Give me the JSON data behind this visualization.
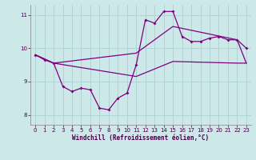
{
  "xlabel": "Windchill (Refroidissement éolien,°C)",
  "bg_color": "#cce8e8",
  "line_color": "#800080",
  "grid_color": "#b0d4d4",
  "xlim": [
    -0.5,
    23.5
  ],
  "ylim": [
    7.7,
    11.3
  ],
  "yticks": [
    8,
    9,
    10,
    11
  ],
  "xticks": [
    0,
    1,
    2,
    3,
    4,
    5,
    6,
    7,
    8,
    9,
    10,
    11,
    12,
    13,
    14,
    15,
    16,
    17,
    18,
    19,
    20,
    21,
    22,
    23
  ],
  "curve1_x": [
    0,
    1,
    2,
    3,
    4,
    5,
    6,
    7,
    8,
    9,
    10,
    11,
    12,
    13,
    14,
    15,
    16,
    17,
    18,
    19,
    20,
    21,
    22,
    23
  ],
  "curve1_y": [
    9.8,
    9.65,
    9.55,
    8.85,
    8.7,
    8.8,
    8.75,
    8.2,
    8.15,
    8.5,
    8.65,
    9.5,
    10.85,
    10.75,
    11.1,
    11.1,
    10.35,
    10.2,
    10.2,
    10.3,
    10.35,
    10.25,
    10.25,
    10.0
  ],
  "envelope_upper_x": [
    0,
    2,
    11,
    15,
    22,
    23
  ],
  "envelope_upper_y": [
    9.8,
    9.55,
    9.85,
    10.65,
    10.25,
    9.55
  ],
  "envelope_lower_x": [
    0,
    2,
    11,
    15,
    22,
    23
  ],
  "envelope_lower_y": [
    9.8,
    9.55,
    9.15,
    9.6,
    9.55,
    9.55
  ]
}
